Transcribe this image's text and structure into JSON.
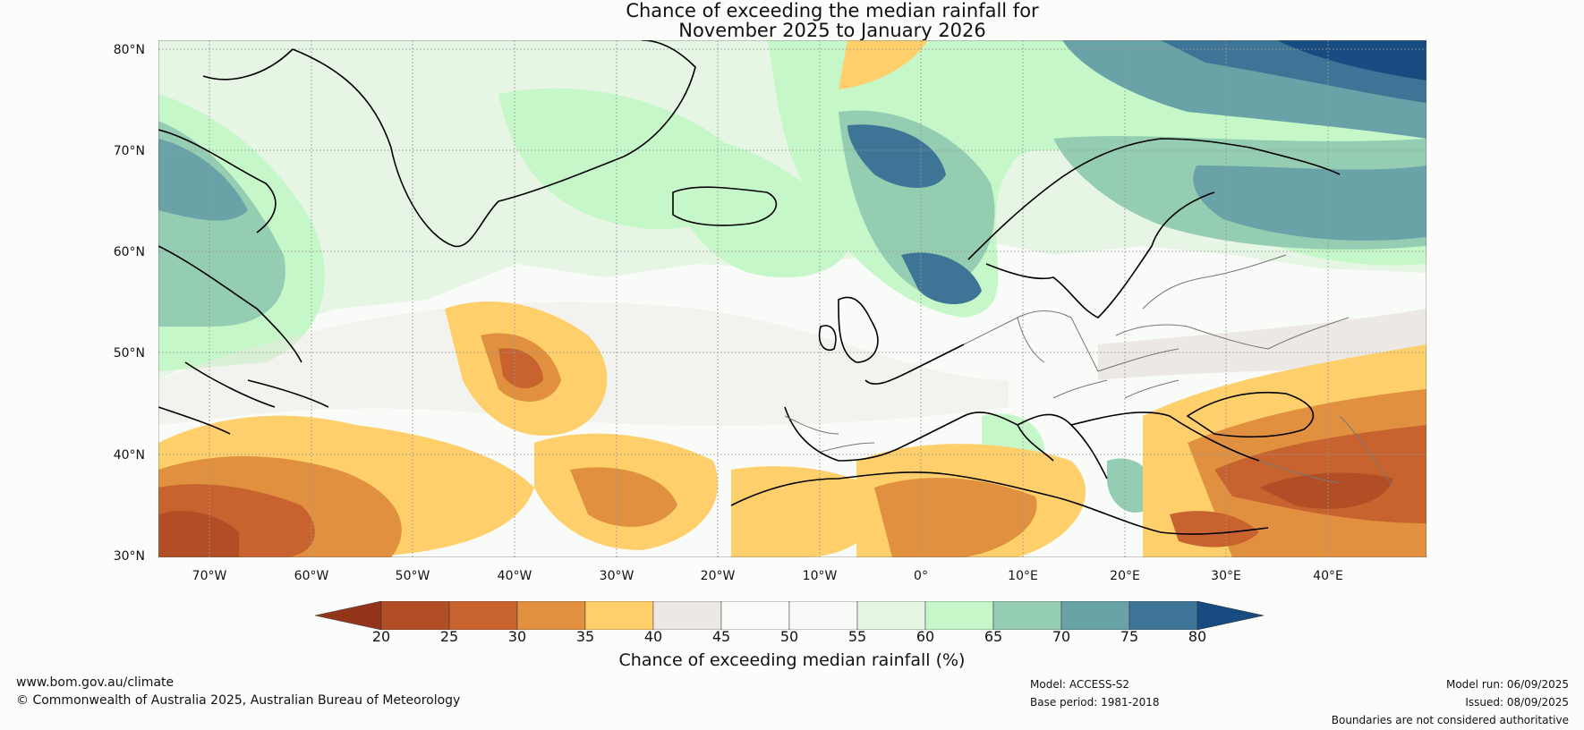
{
  "title": {
    "line1": "Chance of exceeding the median rainfall for",
    "line2": "November 2025 to January 2026"
  },
  "map": {
    "lat_labels": [
      "80°N",
      "70°N",
      "60°N",
      "50°N",
      "40°N",
      "30°N"
    ],
    "lon_labels": [
      "70°W",
      "60°W",
      "50°W",
      "40°W",
      "30°W",
      "20°W",
      "10°W",
      "0°",
      "10°E",
      "20°E",
      "30°E",
      "40°E"
    ],
    "regions": [
      {
        "name": "dry-atlantic-southwest",
        "class": "20-25"
      },
      {
        "name": "dry-mid-atlantic",
        "class": "25-30"
      },
      {
        "name": "dry-north-africa",
        "class": "25-35"
      },
      {
        "name": "dry-turkey-middle-east",
        "class": "25-35"
      },
      {
        "name": "wet-svalbard-barents",
        "class": "75-80"
      },
      {
        "name": "wet-scandinavia-russia",
        "class": "65-75"
      },
      {
        "name": "wet-norwegian-sea",
        "class": "70-75"
      }
    ]
  },
  "colorbar": {
    "ticks": [
      "20",
      "25",
      "30",
      "35",
      "40",
      "45",
      "50",
      "55",
      "60",
      "65",
      "70",
      "75",
      "80"
    ],
    "colors": [
      "#a3401f",
      "#b24e25",
      "#c8632f",
      "#e0903f",
      "#fecf6a",
      "#ece9e4",
      "#fbfcfa",
      "#f9fbf8",
      "#e6f5e4",
      "#c6f7c9",
      "#94cdb2",
      "#69a2a7",
      "#3e7596"
    ],
    "under_color": "#93351a",
    "over_color": "#184c81",
    "label": "Chance of exceeding median rainfall (%)"
  },
  "footer": {
    "website": "www.bom.gov.au/climate",
    "copyright": "© Commonwealth of Australia 2025, Australian Bureau of Meteorology",
    "model": "Model: ACCESS-S2",
    "base_period": "Base period: 1981-2018",
    "model_run": "Model run: 06/09/2025",
    "issued": "Issued: 08/09/2025",
    "disclaimer": "Boundaries are not considered authoritative"
  }
}
